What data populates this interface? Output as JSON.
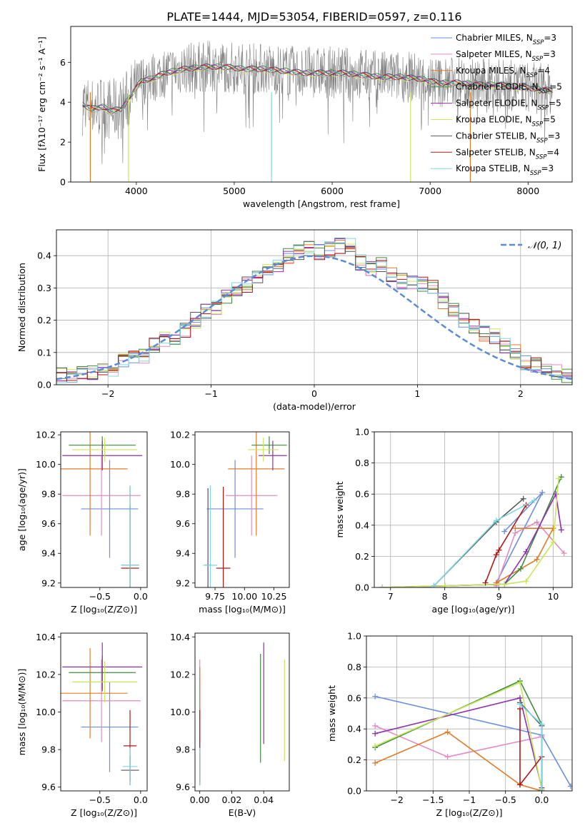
{
  "figure_title": "PLATE=1444, MJD=53054, FIBERID=0597, z=0.116",
  "colors": {
    "Chabrier MILES": "#6a8fdb",
    "Salpeter MILES": "#e58ac2",
    "Kroupa MILES": "#e07b28",
    "Chabrier ELODIE": "#3d8b3d",
    "Salpeter ELODIE": "#8e30b0",
    "Kroupa ELODIE": "#c8e65a",
    "Chabrier STELIB": "#555555",
    "Salpeter STELIB": "#b01818",
    "Kroupa STELIB": "#7fd6e0",
    "data": "#808080",
    "grid": "#b0b0b0"
  },
  "chart_data": [
    {
      "id": "spectrum",
      "type": "line",
      "xlabel": "wavelength [Angstrom, rest frame]",
      "ylabel": "Flux [fλ10⁻¹⁷ erg cm⁻² s⁻¹ A⁻¹]",
      "xlim": [
        3330,
        8450
      ],
      "ylim": [
        0,
        7.8
      ],
      "xticks": [
        4000,
        5000,
        6000,
        7000,
        8000
      ],
      "yticks": [
        0,
        2,
        4,
        6
      ],
      "legend": "upper-right",
      "legend_entries": [
        {
          "label": "Chabrier MILES, N",
          "sub": "SSP",
          "tail": "=3",
          "color": "#6a8fdb"
        },
        {
          "label": "Salpeter MILES, N",
          "sub": "SSP",
          "tail": "=3",
          "color": "#e58ac2"
        },
        {
          "label": "Kroupa MILES, N",
          "sub": "SSP",
          "tail": "=4",
          "color": "#e07b28"
        },
        {
          "label": "Chabrier ELODIE, N",
          "sub": "SSP",
          "tail": "=5",
          "color": "#3d8b3d"
        },
        {
          "label": "Salpeter ELODIE, N",
          "sub": "SSP",
          "tail": "=5",
          "color": "#8e30b0"
        },
        {
          "label": "Kroupa ELODIE, N",
          "sub": "SSP",
          "tail": "=5",
          "color": "#c8e65a"
        },
        {
          "label": "Chabrier STELIB, N",
          "sub": "SSP",
          "tail": "=3",
          "color": "#555555"
        },
        {
          "label": "Salpeter STELIB, N",
          "sub": "SSP",
          "tail": "=4",
          "color": "#b01818"
        },
        {
          "label": "Kroupa STELIB, N",
          "sub": "SSP",
          "tail": "=3",
          "color": "#7fd6e0"
        }
      ],
      "continuum": {
        "x": [
          3450,
          3550,
          3650,
          3750,
          3850,
          3950,
          4050,
          4150,
          4300,
          4500,
          4700,
          4900,
          5100,
          5300,
          5500,
          5700,
          5900,
          6100,
          6300,
          6500,
          6700,
          6900,
          7100,
          7300,
          7500,
          7700,
          7900,
          8100,
          8250
        ],
        "y": [
          3.9,
          3.7,
          3.8,
          3.6,
          3.7,
          4.4,
          5.1,
          5.2,
          5.5,
          5.7,
          5.8,
          5.8,
          5.7,
          5.7,
          5.6,
          5.5,
          5.5,
          5.5,
          5.4,
          5.3,
          5.3,
          5.2,
          5.0,
          5.0,
          4.9,
          4.9,
          4.8,
          4.7,
          4.6
        ]
      }
    },
    {
      "id": "residuals",
      "type": "histogram",
      "xlabel": "(data-model)/error",
      "ylabel": "Normed distribution",
      "xlim": [
        -2.5,
        2.5
      ],
      "ylim": [
        0,
        0.48
      ],
      "xticks": [
        -2,
        -1,
        0,
        1,
        2
      ],
      "yticks": [
        0.0,
        0.1,
        0.2,
        0.3,
        0.4
      ],
      "grid": true,
      "legend": "upper-right",
      "gaussian_label": "𝒩(0, 1)",
      "gaussian_color": "#5b8bd6",
      "bin_width": 0.1,
      "bin_start": -2.5,
      "base_hist": [
        0.03,
        0.03,
        0.04,
        0.04,
        0.05,
        0.05,
        0.08,
        0.09,
        0.09,
        0.12,
        0.14,
        0.15,
        0.17,
        0.2,
        0.23,
        0.24,
        0.27,
        0.3,
        0.31,
        0.33,
        0.35,
        0.37,
        0.4,
        0.41,
        0.42,
        0.41,
        0.42,
        0.43,
        0.43,
        0.38,
        0.36,
        0.37,
        0.34,
        0.32,
        0.32,
        0.31,
        0.3,
        0.26,
        0.23,
        0.2,
        0.18,
        0.16,
        0.15,
        0.12,
        0.1,
        0.07,
        0.06,
        0.05,
        0.04,
        0.03
      ]
    },
    {
      "id": "age_vs_z",
      "type": "errorbar",
      "xlabel": "Z [log₁₀(Z/Z⊙)]",
      "ylabel": "age  [log₁₀(age/yr)]",
      "xlim": [
        -0.98,
        0.08
      ],
      "ylim": [
        9.17,
        10.22
      ],
      "xticks": [
        -0.5,
        0.0
      ],
      "yticks": [
        9.2,
        9.4,
        9.6,
        9.8,
        10.0,
        10.2
      ],
      "points": [
        {
          "model": "Chabrier MILES",
          "x": -0.38,
          "xerr": 0.35,
          "y": 9.7,
          "yerr": 0.33
        },
        {
          "model": "Salpeter MILES",
          "x": -0.48,
          "xerr": 0.48,
          "y": 9.79,
          "yerr": 0.27
        },
        {
          "model": "Kroupa MILES",
          "x": -0.62,
          "xerr": 0.46,
          "y": 9.97,
          "yerr": 0.45
        },
        {
          "model": "Chabrier ELODIE",
          "x": -0.47,
          "xerr": 0.41,
          "y": 10.13,
          "yerr": 0.06
        },
        {
          "model": "Salpeter ELODIE",
          "x": -0.47,
          "xerr": 0.49,
          "y": 10.06,
          "yerr": 0.1
        },
        {
          "model": "Kroupa ELODIE",
          "x": -0.44,
          "xerr": 0.4,
          "y": 10.1,
          "yerr": 0.08
        },
        {
          "model": "Chabrier STELIB",
          "x": -0.13,
          "xerr": 0.11,
          "y": 9.32,
          "yerr": 0.4
        },
        {
          "model": "Salpeter STELIB",
          "x": -0.13,
          "xerr": 0.11,
          "y": 9.3,
          "yerr": 0.55
        },
        {
          "model": "Kroupa STELIB",
          "x": -0.13,
          "xerr": 0.11,
          "y": 9.32,
          "yerr": 0.54
        }
      ]
    },
    {
      "id": "age_vs_mass",
      "type": "errorbar",
      "xlabel": "mass [log₁₀(M/M⊙)]",
      "ylabel": "",
      "xlim": [
        9.58,
        10.38
      ],
      "ylim": [
        9.17,
        10.22
      ],
      "xticks": [
        9.75,
        10.0,
        10.25
      ],
      "yticks": [
        9.2,
        9.4,
        9.6,
        9.8,
        10.0,
        10.2
      ],
      "points": [
        {
          "model": "Chabrier MILES",
          "x": 9.92,
          "xerr": 0.24,
          "y": 9.7,
          "yerr": 0.33
        },
        {
          "model": "Salpeter MILES",
          "x": 10.06,
          "xerr": 0.22,
          "y": 9.79,
          "yerr": 0.27
        },
        {
          "model": "Kroupa MILES",
          "x": 10.1,
          "xerr": 0.24,
          "y": 9.97,
          "yerr": 0.45
        },
        {
          "model": "Chabrier ELODIE",
          "x": 10.21,
          "xerr": 0.15,
          "y": 10.13,
          "yerr": 0.06
        },
        {
          "model": "Salpeter ELODIE",
          "x": 10.24,
          "xerr": 0.12,
          "y": 10.06,
          "yerr": 0.1
        },
        {
          "model": "Kroupa ELODIE",
          "x": 10.16,
          "xerr": 0.13,
          "y": 10.1,
          "yerr": 0.08
        },
        {
          "model": "Chabrier STELIB",
          "x": 9.69,
          "xerr": 0.03,
          "y": 9.32,
          "yerr": 0.52
        },
        {
          "model": "Salpeter STELIB",
          "x": 9.82,
          "xerr": 0.06,
          "y": 9.3,
          "yerr": 0.55
        },
        {
          "model": "Kroupa STELIB",
          "x": 9.71,
          "xerr": 0.06,
          "y": 9.32,
          "yerr": 0.54
        }
      ]
    },
    {
      "id": "massweight_vs_age",
      "type": "line",
      "xlabel": "age  [log₁₀(age/yr)]",
      "ylabel": "mass weight",
      "xlim": [
        6.7,
        10.35
      ],
      "ylim": [
        0,
        1.0
      ],
      "xticks": [
        7,
        8,
        9,
        10
      ],
      "yticks": [
        0.0,
        0.2,
        0.4,
        0.6,
        0.8,
        1.0
      ],
      "grid": true,
      "series": [
        {
          "model": "Chabrier MILES",
          "x": [
            8.95,
            9.8,
            9.1
          ],
          "y": [
            0.03,
            0.61,
            0.36
          ]
        },
        {
          "model": "Salpeter MILES",
          "x": [
            8.95,
            9.3,
            9.7,
            10.2
          ],
          "y": [
            0.01,
            0.35,
            0.42,
            0.22
          ]
        },
        {
          "model": "Kroupa MILES",
          "x": [
            8.95,
            9.7,
            10.0,
            9.3
          ],
          "y": [
            0.03,
            0.18,
            0.38,
            0.38
          ]
        },
        {
          "model": "Chabrier ELODIE",
          "x": [
            6.85,
            8.0,
            9.1,
            9.4,
            10.15
          ],
          "y": [
            0.0,
            0.01,
            0.02,
            0.12,
            0.71
          ]
        },
        {
          "model": "Salpeter ELODIE",
          "x": [
            6.85,
            8.0,
            9.1,
            9.5,
            10.05,
            10.15
          ],
          "y": [
            0.0,
            0.01,
            0.02,
            0.23,
            0.6,
            0.37
          ]
        },
        {
          "model": "Kroupa ELODIE",
          "x": [
            6.85,
            8.0,
            9.1,
            9.5,
            10.0,
            10.1
          ],
          "y": [
            0.0,
            0.01,
            0.02,
            0.04,
            0.29,
            0.7
          ]
        },
        {
          "model": "Chabrier STELIB",
          "x": [
            7.8,
            8.95,
            9.45
          ],
          "y": [
            0.01,
            0.42,
            0.57
          ]
        },
        {
          "model": "Salpeter STELIB",
          "x": [
            8.75,
            8.95,
            9.0,
            9.5
          ],
          "y": [
            0.03,
            0.21,
            0.24,
            0.53
          ]
        },
        {
          "model": "Kroupa STELIB",
          "x": [
            7.8,
            8.95,
            9.65
          ],
          "y": [
            0.01,
            0.43,
            0.56
          ]
        }
      ]
    },
    {
      "id": "mass_vs_z",
      "type": "errorbar",
      "xlabel": "Z [log₁₀(Z/Z⊙)]",
      "ylabel": "mass [log₁₀(M/M⊙)]",
      "xlim": [
        -0.98,
        0.08
      ],
      "ylim": [
        9.58,
        10.42
      ],
      "xticks": [
        -0.5,
        0.0
      ],
      "yticks": [
        9.6,
        9.8,
        10.0,
        10.2,
        10.4
      ],
      "points": [
        {
          "model": "Chabrier MILES",
          "x": -0.38,
          "xerr": 0.35,
          "y": 9.92,
          "yerr": 0.24
        },
        {
          "model": "Salpeter MILES",
          "x": -0.48,
          "xerr": 0.48,
          "y": 10.06,
          "yerr": 0.22
        },
        {
          "model": "Kroupa MILES",
          "x": -0.62,
          "xerr": 0.46,
          "y": 10.1,
          "yerr": 0.24
        },
        {
          "model": "Chabrier ELODIE",
          "x": -0.47,
          "xerr": 0.41,
          "y": 10.21,
          "yerr": 0.09
        },
        {
          "model": "Salpeter ELODIE",
          "x": -0.47,
          "xerr": 0.49,
          "y": 10.24,
          "yerr": 0.13
        },
        {
          "model": "Kroupa ELODIE",
          "x": -0.44,
          "xerr": 0.4,
          "y": 10.16,
          "yerr": 0.11
        },
        {
          "model": "Chabrier STELIB",
          "x": -0.13,
          "xerr": 0.11,
          "y": 9.69,
          "yerr": 0.08
        },
        {
          "model": "Salpeter STELIB",
          "x": -0.13,
          "xerr": 0.08,
          "y": 9.82,
          "yerr": 0.19
        },
        {
          "model": "Kroupa STELIB",
          "x": -0.13,
          "xerr": 0.09,
          "y": 9.71,
          "yerr": 0.1
        }
      ]
    },
    {
      "id": "mass_vs_ebv",
      "type": "errorbar",
      "xlabel": "E(B-V)",
      "ylabel": "",
      "xlim": [
        -0.003,
        0.056
      ],
      "ylim": [
        9.58,
        10.42
      ],
      "xticks": [
        0.0,
        0.02,
        0.04
      ],
      "yticks": [
        9.6,
        9.8,
        10.0,
        10.2,
        10.4
      ],
      "points": [
        {
          "model": "Chabrier MILES",
          "x": 0.0,
          "xerr": 0,
          "y": 9.92,
          "yerr": 0.24
        },
        {
          "model": "Salpeter MILES",
          "x": 0.0,
          "xerr": 0,
          "y": 10.06,
          "yerr": 0.22
        },
        {
          "model": "Kroupa MILES",
          "x": 0.0,
          "xerr": 0,
          "y": 10.1,
          "yerr": 0.14
        },
        {
          "model": "Chabrier ELODIE",
          "x": 0.038,
          "xerr": 0,
          "y": 10.02,
          "yerr": 0.29
        },
        {
          "model": "Salpeter ELODIE",
          "x": 0.04,
          "xerr": 0,
          "y": 10.1,
          "yerr": 0.27
        },
        {
          "model": "Kroupa ELODIE",
          "x": 0.053,
          "xerr": 0,
          "y": 10.01,
          "yerr": 0.27
        },
        {
          "model": "Chabrier STELIB",
          "x": 0.0,
          "xerr": 0,
          "y": 9.69,
          "yerr": 0.08
        },
        {
          "model": "Salpeter STELIB",
          "x": 0.0,
          "xerr": 0,
          "y": 9.82,
          "yerr": 0.19
        },
        {
          "model": "Kroupa STELIB",
          "x": 0.0,
          "xerr": 0,
          "y": 9.71,
          "yerr": 0.1
        }
      ]
    },
    {
      "id": "massweight_vs_z",
      "type": "line",
      "xlabel": "Z [log₁₀(Z/Z⊙)]",
      "ylabel": "mass weight",
      "xlim": [
        -2.42,
        0.42
      ],
      "ylim": [
        0,
        1.0
      ],
      "xticks": [
        -2.0,
        -1.5,
        -1.0,
        -0.5,
        0.0
      ],
      "yticks": [
        0.0,
        0.2,
        0.4,
        0.6,
        0.8,
        1.0
      ],
      "grid": true,
      "series": [
        {
          "model": "Chabrier MILES",
          "x": [
            -2.3,
            0.0,
            0.4
          ],
          "y": [
            0.61,
            0.36,
            0.03
          ]
        },
        {
          "model": "Salpeter MILES",
          "x": [
            -2.3,
            -1.3,
            0.0
          ],
          "y": [
            0.42,
            0.22,
            0.35
          ]
        },
        {
          "model": "Kroupa MILES",
          "x": [
            -2.3,
            -1.3,
            -0.3,
            0.0
          ],
          "y": [
            0.18,
            0.38,
            0.04,
            0.0
          ]
        },
        {
          "model": "Chabrier ELODIE",
          "x": [
            -2.3,
            -0.3,
            0.0,
            0.0
          ],
          "y": [
            0.28,
            0.71,
            0.43,
            0.01
          ]
        },
        {
          "model": "Salpeter ELODIE",
          "x": [
            -2.3,
            -0.3,
            0.0
          ],
          "y": [
            0.37,
            0.6,
            0.02
          ]
        },
        {
          "model": "Kroupa ELODIE",
          "x": [
            -2.3,
            -0.3,
            0.0
          ],
          "y": [
            0.29,
            0.7,
            0.01
          ]
        },
        {
          "model": "Chabrier STELIB",
          "x": [
            -0.3,
            0.0,
            0.0
          ],
          "y": [
            0.57,
            0.42,
            0.0
          ]
        },
        {
          "model": "Salpeter STELIB",
          "x": [
            -0.3,
            -0.3,
            0.0,
            0.0
          ],
          "y": [
            0.53,
            0.04,
            0.22,
            0.0
          ]
        },
        {
          "model": "Kroupa STELIB",
          "x": [
            -0.3,
            0.0,
            0.0
          ],
          "y": [
            0.56,
            0.43,
            0.0
          ]
        }
      ]
    }
  ]
}
